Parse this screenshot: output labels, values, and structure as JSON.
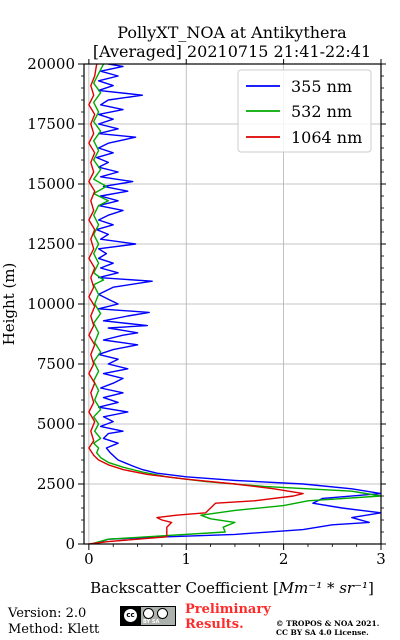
{
  "chart_data": {
    "type": "line",
    "title_line1": "PollyXT_NOA at Antikythera",
    "title_line2": "[Averaged] 20210715 21:41-22:41",
    "xlabel_prefix": "Backscatter Coefficient [",
    "xlabel_math": "Mm⁻¹ * sr⁻¹",
    "xlabel_suffix": "]",
    "ylabel": "Height (m)",
    "xlim": [
      -0.05,
      3
    ],
    "ylim": [
      0,
      20000
    ],
    "xticks": [
      0,
      1,
      2,
      3
    ],
    "xtick_labels": [
      "0",
      "1",
      "2",
      "3"
    ],
    "yticks": [
      0,
      2500,
      5000,
      7500,
      10000,
      12500,
      15000,
      17500,
      20000
    ],
    "ytick_labels": [
      "0",
      "2500",
      "5000",
      "7500",
      "10000",
      "12500",
      "15000",
      "17500",
      "20000"
    ],
    "grid": true,
    "legend_position": "top-right",
    "series": [
      {
        "name": "355 nm",
        "color": "#0000ff",
        "points": [
          [
            0.05,
            0
          ],
          [
            0.2,
            200
          ],
          [
            0.8,
            300
          ],
          [
            1.5,
            400
          ],
          [
            2.2,
            600
          ],
          [
            2.5,
            800
          ],
          [
            2.88,
            900
          ],
          [
            2.7,
            1100
          ],
          [
            3.0,
            1300
          ],
          [
            2.6,
            1500
          ],
          [
            2.3,
            1700
          ],
          [
            2.4,
            1900
          ],
          [
            3.0,
            2100
          ],
          [
            2.7,
            2300
          ],
          [
            2.2,
            2500
          ],
          [
            1.5,
            2650
          ],
          [
            1.0,
            2800
          ],
          [
            0.7,
            2950
          ],
          [
            0.55,
            3100
          ],
          [
            0.45,
            3250
          ],
          [
            0.3,
            3500
          ],
          [
            0.22,
            3800
          ],
          [
            0.18,
            4000
          ],
          [
            0.3,
            4200
          ],
          [
            0.15,
            4400
          ],
          [
            0.2,
            4600
          ],
          [
            0.35,
            4700
          ],
          [
            0.12,
            4900
          ],
          [
            0.25,
            5100
          ],
          [
            0.15,
            5300
          ],
          [
            0.4,
            5500
          ],
          [
            0.1,
            5700
          ],
          [
            0.3,
            5900
          ],
          [
            0.15,
            6100
          ],
          [
            0.35,
            6300
          ],
          [
            0.12,
            6500
          ],
          [
            0.25,
            6700
          ],
          [
            0.35,
            6900
          ],
          [
            0.15,
            7100
          ],
          [
            0.4,
            7300
          ],
          [
            0.2,
            7500
          ],
          [
            0.3,
            7700
          ],
          [
            0.1,
            7900
          ],
          [
            0.25,
            8100
          ],
          [
            0.5,
            8300
          ],
          [
            0.15,
            8500
          ],
          [
            0.35,
            8700
          ],
          [
            0.5,
            8800
          ],
          [
            0.2,
            9000
          ],
          [
            0.6,
            9100
          ],
          [
            0.15,
            9300
          ],
          [
            0.4,
            9500
          ],
          [
            0.62,
            9650
          ],
          [
            0.1,
            9800
          ],
          [
            0.3,
            10000
          ],
          [
            0.2,
            10200
          ],
          [
            0.1,
            10400
          ],
          [
            0.25,
            10700
          ],
          [
            0.65,
            10950
          ],
          [
            0.1,
            11100
          ],
          [
            0.3,
            11300
          ],
          [
            0.12,
            11500
          ],
          [
            0.25,
            11700
          ],
          [
            0.1,
            11900
          ],
          [
            0.18,
            12100
          ],
          [
            0.1,
            12300
          ],
          [
            0.48,
            12500
          ],
          [
            0.12,
            12700
          ],
          [
            0.2,
            12900
          ],
          [
            0.08,
            13100
          ],
          [
            0.25,
            13300
          ],
          [
            0.1,
            13500
          ],
          [
            0.2,
            13700
          ],
          [
            0.35,
            13900
          ],
          [
            0.1,
            14100
          ],
          [
            0.3,
            14300
          ],
          [
            0.12,
            14500
          ],
          [
            0.4,
            14700
          ],
          [
            0.15,
            14900
          ],
          [
            0.45,
            15100
          ],
          [
            0.12,
            15300
          ],
          [
            0.3,
            15500
          ],
          [
            0.1,
            15700
          ],
          [
            0.2,
            15900
          ],
          [
            0.08,
            16100
          ],
          [
            0.25,
            16300
          ],
          [
            0.1,
            16500
          ],
          [
            0.2,
            16700
          ],
          [
            0.48,
            16950
          ],
          [
            0.1,
            17100
          ],
          [
            0.3,
            17300
          ],
          [
            0.1,
            17500
          ],
          [
            0.25,
            17700
          ],
          [
            0.1,
            17900
          ],
          [
            0.35,
            18100
          ],
          [
            0.12,
            18300
          ],
          [
            0.2,
            18500
          ],
          [
            0.55,
            18700
          ],
          [
            0.1,
            18900
          ],
          [
            0.25,
            19100
          ],
          [
            0.1,
            19300
          ],
          [
            0.3,
            19500
          ],
          [
            0.12,
            19700
          ],
          [
            0.35,
            19900
          ],
          [
            0.2,
            20000
          ]
        ]
      },
      {
        "name": "532 nm",
        "color": "#00aa00",
        "points": [
          [
            0.02,
            0
          ],
          [
            0.2,
            200
          ],
          [
            0.8,
            350
          ],
          [
            1.4,
            500
          ],
          [
            1.38,
            700
          ],
          [
            1.5,
            900
          ],
          [
            1.25,
            1050
          ],
          [
            1.15,
            1200
          ],
          [
            1.5,
            1400
          ],
          [
            2.0,
            1600
          ],
          [
            2.25,
            1800
          ],
          [
            3.0,
            2000
          ],
          [
            2.7,
            2200
          ],
          [
            1.8,
            2400
          ],
          [
            1.2,
            2600
          ],
          [
            0.8,
            2800
          ],
          [
            0.55,
            3000
          ],
          [
            0.35,
            3200
          ],
          [
            0.2,
            3400
          ],
          [
            0.12,
            3600
          ],
          [
            0.08,
            3800
          ],
          [
            0.1,
            4000
          ],
          [
            0.05,
            4200
          ],
          [
            0.12,
            4400
          ],
          [
            0.06,
            4700
          ],
          [
            0.1,
            5000
          ],
          [
            0.05,
            5300
          ],
          [
            0.12,
            5600
          ],
          [
            0.06,
            6000
          ],
          [
            0.1,
            6400
          ],
          [
            0.05,
            6800
          ],
          [
            0.1,
            7200
          ],
          [
            0.05,
            7600
          ],
          [
            0.12,
            8000
          ],
          [
            0.06,
            8400
          ],
          [
            0.1,
            8800
          ],
          [
            0.05,
            9200
          ],
          [
            0.12,
            9600
          ],
          [
            0.06,
            10000
          ],
          [
            0.1,
            10400
          ],
          [
            0.05,
            10800
          ],
          [
            0.15,
            11000
          ],
          [
            0.05,
            11300
          ],
          [
            0.1,
            11700
          ],
          [
            0.05,
            12100
          ],
          [
            0.1,
            12500
          ],
          [
            0.05,
            12900
          ],
          [
            0.1,
            13300
          ],
          [
            0.05,
            13700
          ],
          [
            0.1,
            14100
          ],
          [
            0.2,
            14300
          ],
          [
            0.05,
            14600
          ],
          [
            0.18,
            14900
          ],
          [
            0.05,
            15200
          ],
          [
            0.12,
            15600
          ],
          [
            0.05,
            16000
          ],
          [
            0.1,
            16400
          ],
          [
            0.05,
            16800
          ],
          [
            0.12,
            17200
          ],
          [
            0.05,
            17600
          ],
          [
            0.1,
            18000
          ],
          [
            0.05,
            18400
          ],
          [
            0.12,
            18800
          ],
          [
            0.05,
            19200
          ],
          [
            0.1,
            19600
          ],
          [
            0.15,
            20000
          ]
        ]
      },
      {
        "name": "1064 nm",
        "color": "#dd0000",
        "points": [
          [
            0.0,
            0
          ],
          [
            0.2,
            100
          ],
          [
            0.5,
            200
          ],
          [
            0.8,
            300
          ],
          [
            0.8,
            500
          ],
          [
            0.8,
            700
          ],
          [
            0.85,
            900
          ],
          [
            0.75,
            1000
          ],
          [
            0.7,
            1100
          ],
          [
            0.9,
            1200
          ],
          [
            1.2,
            1300
          ],
          [
            1.25,
            1500
          ],
          [
            1.3,
            1700
          ],
          [
            1.7,
            1800
          ],
          [
            2.1,
            2000
          ],
          [
            2.2,
            2100
          ],
          [
            1.9,
            2300
          ],
          [
            1.5,
            2500
          ],
          [
            1.0,
            2700
          ],
          [
            0.6,
            2900
          ],
          [
            0.35,
            3100
          ],
          [
            0.2,
            3300
          ],
          [
            0.1,
            3500
          ],
          [
            0.05,
            3700
          ],
          [
            0.0,
            4000
          ],
          [
            0.05,
            4300
          ],
          [
            0.02,
            4700
          ],
          [
            0.06,
            5100
          ],
          [
            0.0,
            5500
          ],
          [
            0.05,
            5900
          ],
          [
            0.02,
            6300
          ],
          [
            0.06,
            6700
          ],
          [
            0.0,
            7100
          ],
          [
            0.05,
            7500
          ],
          [
            0.02,
            7900
          ],
          [
            0.06,
            8300
          ],
          [
            0.0,
            8700
          ],
          [
            0.05,
            9100
          ],
          [
            0.02,
            9500
          ],
          [
            0.06,
            9900
          ],
          [
            0.0,
            10300
          ],
          [
            0.05,
            10700
          ],
          [
            0.02,
            11100
          ],
          [
            0.06,
            11500
          ],
          [
            0.0,
            11900
          ],
          [
            0.05,
            12300
          ],
          [
            0.02,
            12700
          ],
          [
            0.06,
            13100
          ],
          [
            0.0,
            13500
          ],
          [
            0.05,
            13900
          ],
          [
            0.02,
            14300
          ],
          [
            0.06,
            14700
          ],
          [
            0.0,
            15100
          ],
          [
            0.05,
            15500
          ],
          [
            0.02,
            15900
          ],
          [
            0.06,
            16300
          ],
          [
            0.0,
            16700
          ],
          [
            0.05,
            17100
          ],
          [
            0.02,
            17500
          ],
          [
            0.06,
            17900
          ],
          [
            0.0,
            18300
          ],
          [
            0.05,
            18700
          ],
          [
            0.02,
            19100
          ],
          [
            0.06,
            19500
          ],
          [
            0.08,
            20000
          ]
        ]
      }
    ]
  },
  "footer": {
    "version": "Version: 2.0",
    "method": "Method: Klett",
    "prelim_line1": "Preliminary",
    "prelim_line2": "Results.",
    "copyright_line1": "© TROPOS & NOA 2021.",
    "copyright_line2": "CC BY SA 4.0 License.",
    "license_badge_text": "BY SA",
    "license_badge_mark": "cc"
  }
}
